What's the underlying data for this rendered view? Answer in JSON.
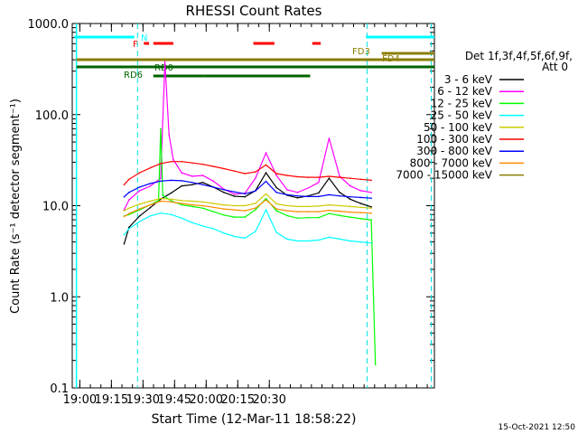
{
  "chart_data": {
    "type": "line",
    "title": "RHESSI Count Rates",
    "xlabel": "Start Time (12-Mar-11 18:58:22)",
    "ylabel": "Count Rate (s⁻¹ detector segment⁻¹)",
    "x_unit": "minutes after 18:58:22",
    "xlim": [
      -2.0,
      170.0
    ],
    "ylim": [
      0.1,
      1000.0
    ],
    "y_scale": "log",
    "grid": false,
    "legend_position": "right",
    "x_ticks": [
      {
        "value": 1.6,
        "label": "19:00"
      },
      {
        "value": 31.6,
        "label": "19:30"
      },
      {
        "value": 61.6,
        "label": "20:00"
      },
      {
        "value": 91.6,
        "label": "20:30"
      }
    ],
    "x_tick_labels": [
      "19:00",
      "19:15",
      "19:30",
      "19:45",
      "20:00",
      "20:15",
      "20:30"
    ],
    "y_ticks": [
      {
        "value": 0.1,
        "label": "0.1"
      },
      {
        "value": 1.0,
        "label": "1.0"
      },
      {
        "value": 10.0,
        "label": "10.0"
      },
      {
        "value": 100.0,
        "label": "100.0"
      },
      {
        "value": 1000.0,
        "label": "1000.0"
      }
    ],
    "legend_header": [
      "Det 1f,3f,4f,5f,6f,9f,",
      "Att 0"
    ],
    "series": [
      {
        "name": "3 - 6 keV",
        "color": "#000000",
        "x": [
          22.6,
          25,
          30,
          35,
          40,
          45,
          50,
          55,
          60,
          65,
          70,
          75,
          80,
          85,
          90,
          95,
          100,
          105,
          110,
          115,
          120,
          125,
          130,
          135,
          140
        ],
        "y": [
          3.8,
          5.8,
          7.7,
          9.5,
          11.8,
          13.8,
          16.5,
          17.0,
          18.0,
          16.0,
          14.0,
          12.7,
          12.5,
          14.6,
          23.0,
          15.8,
          13.0,
          12.2,
          12.8,
          13.8,
          20.0,
          14.0,
          11.8,
          10.6,
          9.7
        ]
      },
      {
        "name": "6 - 12 keV",
        "color": "#ff00ff",
        "x": [
          22.6,
          25,
          30,
          35,
          40,
          42,
          44,
          46,
          50,
          55,
          60,
          65,
          70,
          75,
          80,
          85,
          90,
          95,
          100,
          105,
          110,
          115,
          120,
          125,
          130,
          135,
          140
        ],
        "y": [
          9.0,
          11.6,
          14.6,
          16.4,
          20.0,
          380.0,
          60.0,
          32.0,
          23.0,
          21.0,
          21.5,
          18.6,
          15.2,
          13.4,
          13.7,
          20.0,
          38.0,
          21.5,
          15.0,
          14.0,
          15.6,
          18.0,
          55.0,
          21.0,
          16.5,
          14.6,
          14.0
        ]
      },
      {
        "name": "12 - 25 keV",
        "color": "#00ff00",
        "x": [
          22.6,
          25,
          30,
          35,
          39,
          40,
          41,
          45,
          50,
          55,
          60,
          65,
          70,
          75,
          80,
          85,
          90,
          95,
          100,
          105,
          110,
          115,
          120,
          125,
          130,
          135,
          140,
          142
        ],
        "y": [
          7.7,
          8.0,
          9.0,
          10.2,
          11.4,
          70.0,
          13.0,
          11.3,
          10.2,
          9.8,
          9.4,
          8.6,
          7.9,
          7.5,
          7.5,
          9.0,
          12.0,
          8.8,
          7.8,
          7.3,
          7.4,
          7.4,
          8.2,
          7.8,
          7.5,
          7.2,
          7.0,
          0.18
        ]
      },
      {
        "name": "25 - 50 keV",
        "color": "#00ffff",
        "x": [
          22.6,
          25,
          30,
          35,
          40,
          45,
          50,
          55,
          60,
          65,
          70,
          75,
          80,
          85,
          90,
          95,
          100,
          105,
          110,
          115,
          120,
          125,
          130,
          135,
          140
        ],
        "y": [
          4.8,
          5.6,
          6.7,
          7.7,
          8.3,
          8.0,
          7.3,
          6.5,
          6.0,
          5.6,
          5.0,
          4.6,
          4.4,
          5.2,
          9.0,
          5.1,
          4.3,
          4.1,
          4.1,
          4.2,
          4.5,
          4.3,
          4.1,
          4.0,
          3.9
        ]
      },
      {
        "name": "50 - 100 keV",
        "color": "#cccc00",
        "x": [
          22.6,
          25,
          30,
          35,
          40,
          45,
          50,
          55,
          60,
          65,
          70,
          75,
          80,
          85,
          90,
          95,
          100,
          105,
          110,
          115,
          120,
          125,
          130,
          135,
          140
        ],
        "y": [
          8.8,
          9.4,
          10.4,
          11.2,
          12.0,
          11.8,
          11.4,
          11.2,
          11.0,
          10.6,
          10.2,
          10.0,
          10.0,
          10.6,
          13.5,
          10.5,
          10.0,
          9.8,
          9.8,
          9.9,
          10.2,
          10.0,
          9.8,
          9.6,
          9.4
        ]
      },
      {
        "name": "100 - 300 keV",
        "color": "#ff0000",
        "x": [
          22.6,
          25,
          30,
          35,
          40,
          45,
          50,
          55,
          60,
          65,
          70,
          75,
          80,
          85,
          90,
          95,
          100,
          105,
          110,
          115,
          120,
          125,
          130,
          135,
          140
        ],
        "y": [
          17.0,
          19.5,
          23.0,
          26.0,
          29.0,
          30.5,
          30.5,
          29.5,
          28.5,
          27.0,
          25.5,
          24.0,
          22.5,
          23.5,
          28.0,
          22.5,
          21.5,
          20.8,
          20.5,
          20.5,
          21.0,
          20.5,
          20.0,
          19.5,
          19.0
        ]
      },
      {
        "name": "300 - 800 keV",
        "color": "#0000ff",
        "x": [
          22.6,
          25,
          30,
          35,
          40,
          45,
          50,
          55,
          60,
          65,
          70,
          75,
          80,
          85,
          90,
          95,
          100,
          105,
          110,
          115,
          120,
          125,
          130,
          135,
          140
        ],
        "y": [
          12.5,
          14.0,
          16.0,
          17.5,
          18.6,
          19.0,
          18.8,
          18.0,
          17.0,
          16.0,
          15.0,
          14.2,
          13.5,
          14.5,
          18.5,
          14.0,
          13.2,
          12.8,
          12.6,
          12.6,
          13.2,
          12.8,
          12.5,
          12.3,
          12.1
        ]
      },
      {
        "name": "800 - 7000 keV",
        "color": "#ff8c00",
        "x": [
          22.6,
          25,
          30,
          35,
          40,
          45,
          50,
          55,
          60,
          65,
          70,
          75,
          80,
          85,
          90,
          95,
          100,
          105,
          110,
          115,
          120,
          125,
          130,
          135,
          140
        ],
        "y": [
          7.6,
          8.2,
          9.2,
          10.2,
          11.2,
          11.0,
          10.6,
          10.2,
          10.0,
          9.6,
          9.2,
          9.0,
          8.8,
          9.4,
          11.6,
          9.2,
          8.8,
          8.6,
          8.6,
          8.6,
          8.9,
          8.7,
          8.5,
          8.4,
          8.3
        ]
      },
      {
        "name": "7000 - 15000 keV",
        "color": "#8b7d00",
        "x": [],
        "y": []
      }
    ],
    "attenuator_bars": {
      "label": "N",
      "color": "#00ffff",
      "segments": [
        [
          -1.0,
          27.5
        ],
        [
          137.5,
          170.0
        ]
      ]
    },
    "flare_bars": {
      "label": "F",
      "color": "#ff0000",
      "segments": [
        [
          32.0,
          34.5
        ],
        [
          36.5,
          46.0
        ],
        [
          84.0,
          94.0
        ],
        [
          112.0,
          116.0
        ]
      ]
    },
    "fd_bars": {
      "color": "#8b7d00",
      "labels": [
        "FD3",
        "FD4"
      ],
      "segments": [
        [
          0.0,
          170.0
        ],
        [
          145.0,
          170.0
        ]
      ]
    },
    "rd_bars": {
      "color": "#006400",
      "labels": [
        "RD0",
        "RD6"
      ],
      "segments": [
        [
          0.0,
          170.0
        ],
        [
          36.5,
          61.0
        ],
        [
          61.0,
          111.0
        ]
      ]
    },
    "dashed_lines": [
      29.0,
      138.0,
      168.5
    ],
    "solid_lines": [
      0.0
    ]
  },
  "footer": {
    "date_stamp": "15-Oct-2021 12:50"
  }
}
